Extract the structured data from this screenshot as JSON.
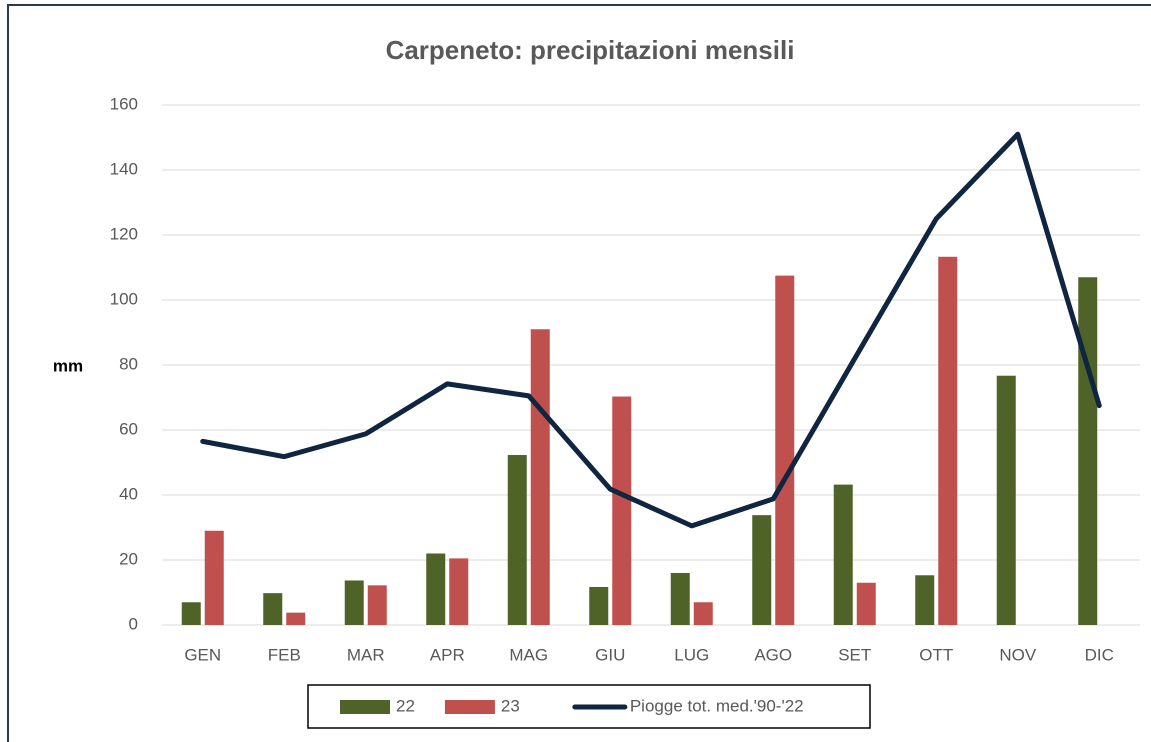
{
  "chart_data": {
    "type": "bar",
    "title": "Carpeneto: precipitazioni mensili",
    "y_label": "mm",
    "categories": [
      "GEN",
      "FEB",
      "MAR",
      "APR",
      "MAG",
      "GIU",
      "LUG",
      "AGO",
      "SET",
      "OTT",
      "NOV",
      "DIC"
    ],
    "series": [
      {
        "name": "22",
        "type": "bar",
        "color": "#4f6228",
        "values": [
          7,
          9.8,
          13.7,
          22,
          52.3,
          11.7,
          16,
          33.8,
          43.2,
          15.3,
          76.7,
          107
        ]
      },
      {
        "name": "23",
        "type": "bar",
        "color": "#c0504d",
        "values": [
          29,
          3.8,
          12.2,
          20.5,
          91,
          70.3,
          7,
          107.5,
          13,
          113.3,
          null,
          null
        ]
      },
      {
        "name": "Piogge tot. med.'90-'22",
        "type": "line",
        "color": "#0f2540",
        "values": [
          56.5,
          51.8,
          58.8,
          74.2,
          70.5,
          41.8,
          30.5,
          38.8,
          82,
          125,
          151,
          67.5
        ]
      }
    ],
    "ylim": [
      0,
      160
    ],
    "yticks": [
      0,
      20,
      40,
      60,
      80,
      100,
      120,
      140,
      160
    ],
    "grid": true,
    "legend": "bottom"
  }
}
